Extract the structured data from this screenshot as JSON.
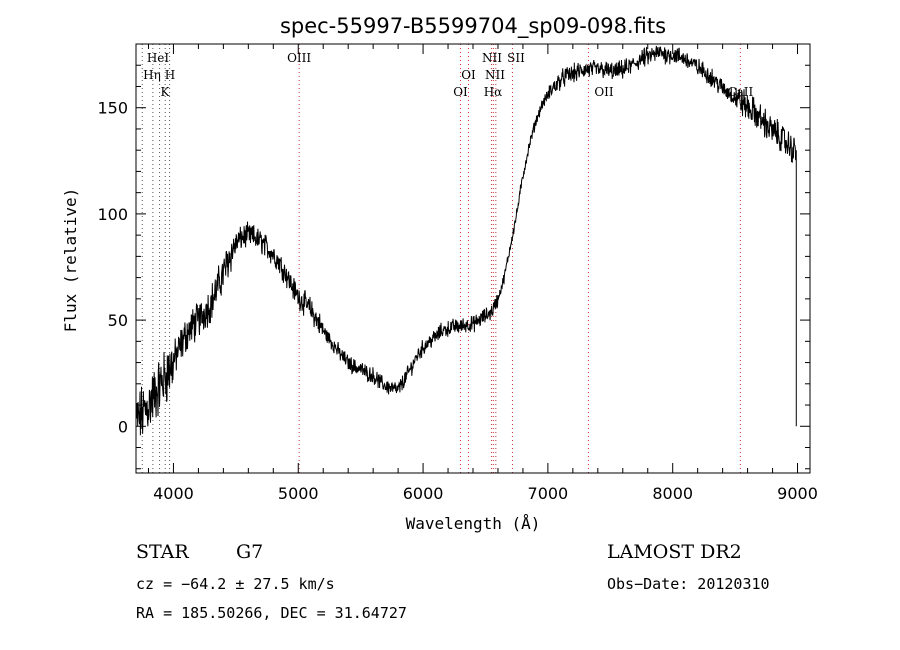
{
  "chart_data": {
    "type": "line",
    "title": "spec-55997-B5599704_sp09-098.fits",
    "xlabel": "Wavelength (Å)",
    "ylabel": "Flux (relative)",
    "xlim": [
      3700,
      9100
    ],
    "ylim": [
      -22,
      180
    ],
    "x_ticks": [
      4000,
      5000,
      6000,
      7000,
      8000,
      9000
    ],
    "y_ticks": [
      0,
      50,
      100,
      150
    ],
    "grid": false,
    "series": [
      {
        "x": [
          3700,
          3740,
          3780,
          3820,
          3860,
          3900,
          3940,
          3980,
          4020,
          4060,
          4100,
          4150,
          4200,
          4250,
          4300,
          4350,
          4400,
          4450,
          4500,
          4550,
          4600,
          4650,
          4700,
          4750,
          4800,
          4850,
          4900,
          4950,
          5000,
          5050,
          5100,
          5150,
          5200,
          5250,
          5300,
          5350,
          5400,
          5450,
          5500,
          5550,
          5600,
          5650,
          5700,
          5750,
          5800,
          5850,
          5900,
          5950,
          6000,
          6050,
          6100,
          6150,
          6200,
          6250,
          6300,
          6350,
          6400,
          6450,
          6500,
          6550,
          6600,
          6650,
          6700,
          6750,
          6800,
          6850,
          6900,
          6950,
          7000,
          7050,
          7100,
          7150,
          7200,
          7250,
          7300,
          7350,
          7400,
          7450,
          7500,
          7550,
          7600,
          7650,
          7700,
          7750,
          7800,
          7850,
          7900,
          7950,
          8000,
          8050,
          8100,
          8150,
          8200,
          8250,
          8300,
          8350,
          8400,
          8450,
          8500,
          8550,
          8600,
          8650,
          8700,
          8750,
          8800,
          8850,
          8900,
          8950,
          8990
        ],
        "y": [
          2,
          5,
          8,
          12,
          16,
          20,
          24,
          28,
          33,
          38,
          43,
          47,
          50,
          54,
          58,
          65,
          72,
          80,
          86,
          89,
          90,
          89,
          87,
          84,
          81,
          77,
          72,
          66,
          61,
          58,
          55,
          50,
          45,
          41,
          37,
          33,
          30,
          28,
          27,
          25,
          24,
          21,
          19,
          18,
          17,
          22,
          27,
          33,
          37,
          40,
          42,
          45,
          46,
          47,
          47,
          48,
          48,
          50,
          52,
          54,
          60,
          70,
          85,
          100,
          118,
          132,
          143,
          151,
          156,
          160,
          163,
          165,
          166,
          167,
          168,
          168,
          168,
          168,
          167,
          167,
          168,
          169,
          171,
          173,
          174,
          175,
          176,
          175,
          175,
          174,
          173,
          171,
          169,
          167,
          165,
          162,
          159,
          157,
          155,
          153,
          150,
          148,
          145,
          142,
          139,
          137,
          134,
          131,
          129
        ]
      }
    ],
    "lines": [
      {
        "x": 3750,
        "color": "#555555",
        "labels": []
      },
      {
        "x": 3835,
        "color": "#555555",
        "labels": []
      },
      {
        "x": 3889,
        "color": "#555555",
        "labels": [
          "HeI",
          "Hη"
        ]
      },
      {
        "x": 3934,
        "color": "#555555",
        "labels": [
          "H"
        ]
      },
      {
        "x": 3969,
        "color": "#555555",
        "labels": [
          "K"
        ]
      },
      {
        "x": 5007,
        "color": "#cc3333",
        "labels": [
          "OIII"
        ]
      },
      {
        "x": 6300,
        "color": "#cc3333",
        "labels": [
          "OI"
        ]
      },
      {
        "x": 6364,
        "color": "#cc3333",
        "labels": [
          "OI"
        ]
      },
      {
        "x": 6548,
        "color": "#cc3333",
        "labels": [
          "NII"
        ]
      },
      {
        "x": 6563,
        "color": "#cc3333",
        "labels": [
          "Hα"
        ]
      },
      {
        "x": 6583,
        "color": "#cc3333",
        "labels": [
          "NII"
        ]
      },
      {
        "x": 6716,
        "color": "#cc3333",
        "labels": [
          "SII"
        ]
      },
      {
        "x": 7325,
        "color": "#cc3333",
        "labels": [
          "OII"
        ]
      },
      {
        "x": 8542,
        "color": "#cc3333",
        "labels": [
          "CaII"
        ]
      }
    ]
  },
  "info": {
    "class": "STAR",
    "subclass": "G7",
    "survey": "LAMOST DR2",
    "cz": "cz = −64.2 ± 27.5 km/s",
    "obs_date": "Obs−Date: 20120310",
    "radec": "RA = 185.50266, DEC =  31.64727"
  }
}
